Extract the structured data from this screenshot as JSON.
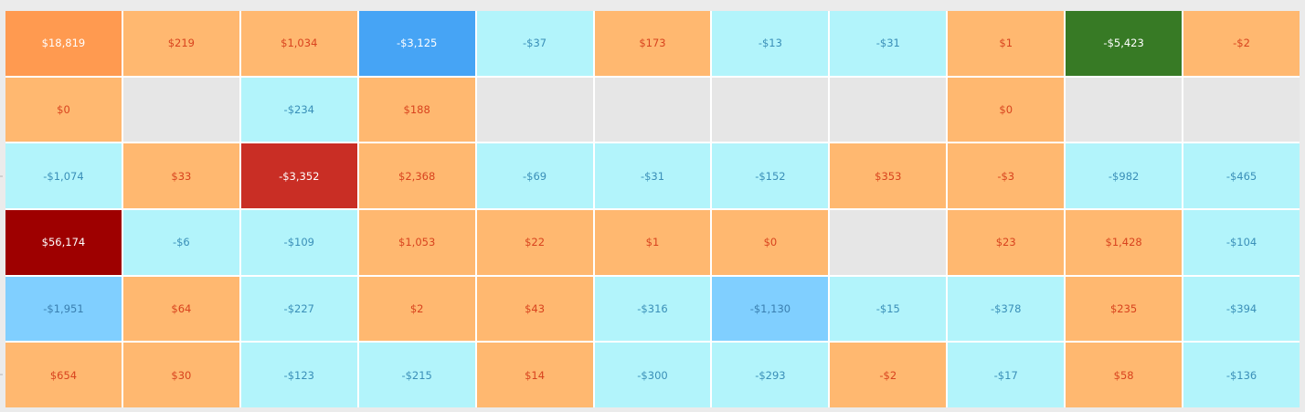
{
  "chart_data": {
    "type": "heatmap",
    "rows": 6,
    "columns": 11,
    "cells": [
      [
        {
          "value": 18819,
          "label": "$18,819",
          "scale": "posm"
        },
        {
          "value": 219,
          "label": "$219",
          "scale": "pos"
        },
        {
          "value": 1034,
          "label": "$1,034",
          "scale": "pos"
        },
        {
          "value": -3125,
          "label": "-$3,125",
          "scale": "negh"
        },
        {
          "value": -37,
          "label": "-$37",
          "scale": "neg"
        },
        {
          "value": 173,
          "label": "$173",
          "scale": "pos"
        },
        {
          "value": -13,
          "label": "-$13",
          "scale": "neg"
        },
        {
          "value": -31,
          "label": "-$31",
          "scale": "neg"
        },
        {
          "value": 1,
          "label": "$1",
          "scale": "pos"
        },
        {
          "value": -5423,
          "label": "-$5,423",
          "scale": "green"
        },
        {
          "value": -2,
          "label": "-$2",
          "scale": "pos"
        }
      ],
      [
        {
          "value": 0,
          "label": "$0",
          "scale": "pos"
        },
        {
          "value": null,
          "label": "",
          "scale": "empty"
        },
        {
          "value": -234,
          "label": "-$234",
          "scale": "neg"
        },
        {
          "value": 188,
          "label": "$188",
          "scale": "pos"
        },
        {
          "value": null,
          "label": "",
          "scale": "empty"
        },
        {
          "value": null,
          "label": "",
          "scale": "empty"
        },
        {
          "value": null,
          "label": "",
          "scale": "empty"
        },
        {
          "value": null,
          "label": "",
          "scale": "empty"
        },
        {
          "value": 0,
          "label": "$0",
          "scale": "pos"
        },
        {
          "value": null,
          "label": "",
          "scale": "empty"
        },
        {
          "value": null,
          "label": "",
          "scale": "empty"
        }
      ],
      [
        {
          "value": -1074,
          "label": "-$1,074",
          "scale": "neg"
        },
        {
          "value": 33,
          "label": "$33",
          "scale": "pos"
        },
        {
          "value": -3352,
          "label": "-$3,352",
          "scale": "red"
        },
        {
          "value": 2368,
          "label": "$2,368",
          "scale": "pos"
        },
        {
          "value": -69,
          "label": "-$69",
          "scale": "neg"
        },
        {
          "value": -31,
          "label": "-$31",
          "scale": "neg"
        },
        {
          "value": -152,
          "label": "-$152",
          "scale": "neg"
        },
        {
          "value": 353,
          "label": "$353",
          "scale": "pos"
        },
        {
          "value": -3,
          "label": "-$3",
          "scale": "pos"
        },
        {
          "value": -982,
          "label": "-$982",
          "scale": "neg"
        },
        {
          "value": -465,
          "label": "-$465",
          "scale": "neg"
        }
      ],
      [
        {
          "value": 56174,
          "label": "$56,174",
          "scale": "posx"
        },
        {
          "value": -6,
          "label": "-$6",
          "scale": "neg"
        },
        {
          "value": -109,
          "label": "-$109",
          "scale": "neg"
        },
        {
          "value": 1053,
          "label": "$1,053",
          "scale": "pos"
        },
        {
          "value": 22,
          "label": "$22",
          "scale": "pos"
        },
        {
          "value": 1,
          "label": "$1",
          "scale": "pos"
        },
        {
          "value": 0,
          "label": "$0",
          "scale": "pos"
        },
        {
          "value": null,
          "label": "",
          "scale": "empty"
        },
        {
          "value": 23,
          "label": "$23",
          "scale": "pos"
        },
        {
          "value": 1428,
          "label": "$1,428",
          "scale": "pos"
        },
        {
          "value": -104,
          "label": "-$104",
          "scale": "neg"
        }
      ],
      [
        {
          "value": -1951,
          "label": "-$1,951",
          "scale": "negm"
        },
        {
          "value": 64,
          "label": "$64",
          "scale": "pos"
        },
        {
          "value": -227,
          "label": "-$227",
          "scale": "neg"
        },
        {
          "value": 2,
          "label": "$2",
          "scale": "pos"
        },
        {
          "value": 43,
          "label": "$43",
          "scale": "pos"
        },
        {
          "value": -316,
          "label": "-$316",
          "scale": "neg"
        },
        {
          "value": -1130,
          "label": "-$1,130",
          "scale": "negm"
        },
        {
          "value": -15,
          "label": "-$15",
          "scale": "neg"
        },
        {
          "value": -378,
          "label": "-$378",
          "scale": "neg"
        },
        {
          "value": 235,
          "label": "$235",
          "scale": "pos"
        },
        {
          "value": -394,
          "label": "-$394",
          "scale": "neg"
        }
      ],
      [
        {
          "value": 654,
          "label": "$654",
          "scale": "pos"
        },
        {
          "value": 30,
          "label": "$30",
          "scale": "pos"
        },
        {
          "value": -123,
          "label": "-$123",
          "scale": "neg"
        },
        {
          "value": -215,
          "label": "-$215",
          "scale": "neg"
        },
        {
          "value": 14,
          "label": "$14",
          "scale": "pos"
        },
        {
          "value": -300,
          "label": "-$300",
          "scale": "neg"
        },
        {
          "value": -293,
          "label": "-$293",
          "scale": "neg"
        },
        {
          "value": -2,
          "label": "-$2",
          "scale": "pos"
        },
        {
          "value": -17,
          "label": "-$17",
          "scale": "neg"
        },
        {
          "value": 58,
          "label": "$58",
          "scale": "pos"
        },
        {
          "value": -136,
          "label": "-$136",
          "scale": "neg"
        }
      ]
    ],
    "colors": {
      "positive": "#ffb870",
      "positive_medium": "#ff9a50",
      "positive_max": "#9e0000",
      "negative": "#b2f4fb",
      "negative_medium": "#80cfff",
      "negative_high": "#46a4f5",
      "outlier_red": "#c92e25",
      "outlier_green": "#377a25",
      "empty": "#e6e6e6"
    }
  }
}
